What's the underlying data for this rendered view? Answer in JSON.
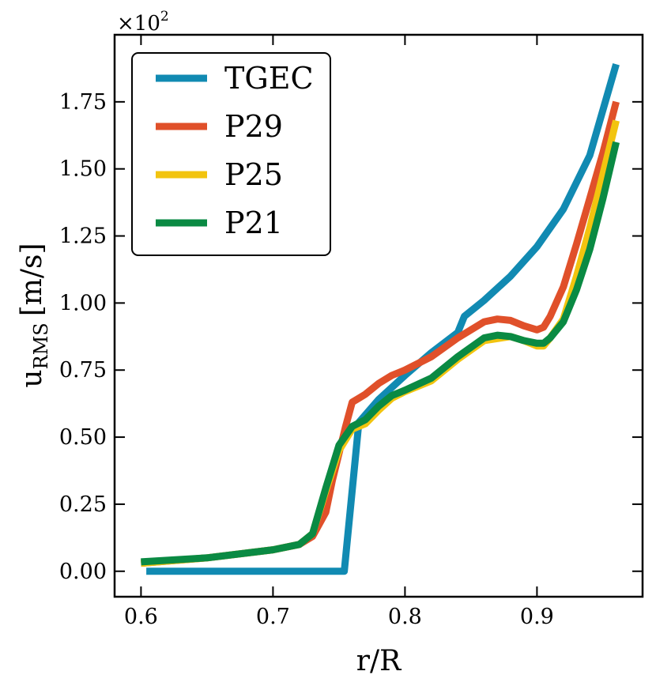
{
  "chart_data": {
    "type": "line",
    "xlabel": "r/R",
    "ylabel_main": "u",
    "ylabel_sub": "RMS",
    "ylabel_unit": "[m/s]",
    "y_multiplier_base": "×10",
    "y_multiplier_exp": "2",
    "xlim": [
      0.58,
      0.98
    ],
    "ylim": [
      -0.095,
      2.0
    ],
    "xticks": [
      0.6,
      0.7,
      0.8,
      0.9
    ],
    "xtick_labels": [
      "0.6",
      "0.7",
      "0.8",
      "0.9"
    ],
    "yticks": [
      0.0,
      0.25,
      0.5,
      0.75,
      1.0,
      1.25,
      1.5,
      1.75
    ],
    "ytick_labels": [
      "0.00",
      "0.25",
      "0.50",
      "0.75",
      "1.00",
      "1.25",
      "1.50",
      "1.75"
    ],
    "legend_position": "top-left",
    "series": [
      {
        "name": "TGEC",
        "color": "#118ab2",
        "x": [
          0.604,
          0.65,
          0.7,
          0.754,
          0.756,
          0.762,
          0.765,
          0.78,
          0.8,
          0.82,
          0.84,
          0.845,
          0.86,
          0.88,
          0.9,
          0.92,
          0.94,
          0.96
        ],
        "y": [
          0.0,
          0.0,
          0.0,
          0.0,
          0.1,
          0.4,
          0.555,
          0.64,
          0.73,
          0.815,
          0.89,
          0.95,
          1.01,
          1.1,
          1.21,
          1.35,
          1.55,
          1.89
        ]
      },
      {
        "name": "P29",
        "color": "#e0502a",
        "x": [
          0.6,
          0.65,
          0.7,
          0.72,
          0.73,
          0.74,
          0.745,
          0.755,
          0.76,
          0.765,
          0.77,
          0.78,
          0.79,
          0.8,
          0.82,
          0.84,
          0.86,
          0.87,
          0.88,
          0.89,
          0.9,
          0.905,
          0.91,
          0.92,
          0.93,
          0.94,
          0.95,
          0.96
        ],
        "y": [
          0.03,
          0.05,
          0.08,
          0.1,
          0.13,
          0.22,
          0.34,
          0.54,
          0.63,
          0.645,
          0.66,
          0.7,
          0.73,
          0.75,
          0.8,
          0.87,
          0.93,
          0.94,
          0.935,
          0.915,
          0.9,
          0.91,
          0.95,
          1.06,
          1.22,
          1.39,
          1.56,
          1.75
        ]
      },
      {
        "name": "P25",
        "color": "#f2c40f",
        "x": [
          0.6,
          0.65,
          0.7,
          0.72,
          0.73,
          0.74,
          0.75,
          0.76,
          0.77,
          0.78,
          0.79,
          0.8,
          0.82,
          0.84,
          0.86,
          0.88,
          0.89,
          0.9,
          0.905,
          0.91,
          0.92,
          0.93,
          0.94,
          0.95,
          0.96
        ],
        "y": [
          0.03,
          0.05,
          0.08,
          0.1,
          0.14,
          0.3,
          0.45,
          0.53,
          0.55,
          0.6,
          0.645,
          0.67,
          0.71,
          0.79,
          0.86,
          0.875,
          0.86,
          0.84,
          0.84,
          0.87,
          0.94,
          1.1,
          1.28,
          1.48,
          1.68
        ]
      },
      {
        "name": "P21",
        "color": "#0a8a43",
        "x": [
          0.6,
          0.65,
          0.7,
          0.72,
          0.73,
          0.74,
          0.75,
          0.76,
          0.77,
          0.78,
          0.79,
          0.8,
          0.82,
          0.84,
          0.86,
          0.87,
          0.88,
          0.89,
          0.9,
          0.905,
          0.91,
          0.92,
          0.93,
          0.94,
          0.95,
          0.96
        ],
        "y": [
          0.035,
          0.05,
          0.08,
          0.1,
          0.14,
          0.31,
          0.47,
          0.54,
          0.565,
          0.615,
          0.655,
          0.675,
          0.72,
          0.8,
          0.87,
          0.88,
          0.875,
          0.86,
          0.85,
          0.85,
          0.87,
          0.93,
          1.05,
          1.2,
          1.39,
          1.6
        ]
      }
    ]
  }
}
